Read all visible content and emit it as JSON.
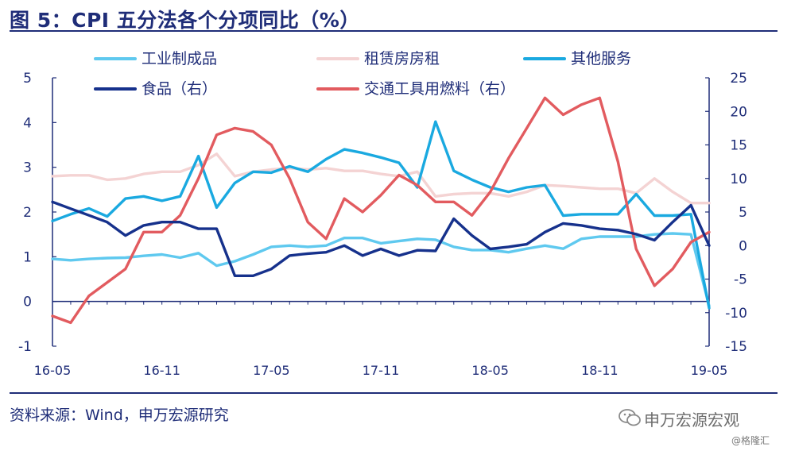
{
  "header": {
    "title": "图 5：CPI 五分法各个分项同比（%）"
  },
  "footer": {
    "source": "资料来源：Wind，申万宏源研究",
    "brand": "申万宏源宏观",
    "watermark": "@格隆汇"
  },
  "colors": {
    "title": "#1f2d78",
    "industrial": "#5fc9ef",
    "rent": "#f4d3d3",
    "other_services": "#1aa9e0",
    "food": "#16318c",
    "fuel": "#e25b5f"
  },
  "chart_data": {
    "type": "line",
    "x": [
      "16-05",
      "16-06",
      "16-07",
      "16-08",
      "16-09",
      "16-10",
      "16-11",
      "16-12",
      "17-01",
      "17-02",
      "17-03",
      "17-04",
      "17-05",
      "17-06",
      "17-07",
      "17-08",
      "17-09",
      "17-10",
      "17-11",
      "17-12",
      "18-01",
      "18-02",
      "18-03",
      "18-04",
      "18-05",
      "18-06",
      "18-07",
      "18-08",
      "18-09",
      "18-10",
      "18-11",
      "18-12",
      "19-01",
      "19-02",
      "19-03",
      "19-04",
      "19-05"
    ],
    "x_tick_labels": [
      "16-05",
      "16-11",
      "17-05",
      "17-11",
      "18-05",
      "18-11",
      "19-05"
    ],
    "x_tick_indices": [
      0,
      6,
      12,
      18,
      24,
      30,
      36
    ],
    "y_left": {
      "min": -1,
      "max": 5,
      "ticks": [
        -1,
        0,
        1,
        2,
        3,
        4,
        5
      ]
    },
    "y_right": {
      "min": -15,
      "max": 25,
      "ticks": [
        -15,
        -10,
        -5,
        0,
        5,
        10,
        15,
        20,
        25
      ]
    },
    "grid": false,
    "legend": "top",
    "series": [
      {
        "name": "工业制成品",
        "axis": "left",
        "color": "#5fc9ef",
        "values": [
          0.95,
          0.92,
          0.95,
          0.97,
          0.98,
          1.02,
          1.05,
          0.98,
          1.08,
          0.8,
          0.9,
          1.05,
          1.22,
          1.25,
          1.22,
          1.25,
          1.42,
          1.42,
          1.3,
          1.35,
          1.4,
          1.38,
          1.22,
          1.15,
          1.15,
          1.1,
          1.18,
          1.25,
          1.18,
          1.4,
          1.45,
          1.45,
          1.45,
          1.5,
          1.52,
          1.5,
          -0.1
        ]
      },
      {
        "name": "租赁房房租",
        "axis": "left",
        "color": "#f4d3d3",
        "values": [
          2.8,
          2.82,
          2.82,
          2.72,
          2.75,
          2.85,
          2.9,
          2.9,
          3.05,
          3.3,
          2.8,
          2.9,
          2.95,
          2.98,
          2.95,
          2.98,
          2.92,
          2.92,
          2.85,
          2.8,
          2.9,
          2.35,
          2.4,
          2.42,
          2.42,
          2.35,
          2.45,
          2.6,
          2.58,
          2.55,
          2.52,
          2.52,
          2.42,
          2.75,
          2.45,
          2.2,
          2.2
        ]
      },
      {
        "name": "其他服务",
        "axis": "left",
        "color": "#1aa9e0",
        "values": [
          1.8,
          1.95,
          2.08,
          1.9,
          2.3,
          2.35,
          2.25,
          2.35,
          3.25,
          2.1,
          2.65,
          2.9,
          2.88,
          3.02,
          2.9,
          3.18,
          3.4,
          3.32,
          3.22,
          3.1,
          2.55,
          4.02,
          2.92,
          2.72,
          2.55,
          2.45,
          2.55,
          2.6,
          1.92,
          1.95,
          1.95,
          1.95,
          2.4,
          1.92,
          1.92,
          1.95,
          -0.15
        ]
      },
      {
        "name": "食品（右）",
        "axis": "right",
        "color": "#16318c",
        "values": [
          6.5,
          5.5,
          4.5,
          3.5,
          1.5,
          3.0,
          3.5,
          3.5,
          2.5,
          2.5,
          -4.5,
          -4.5,
          -3.5,
          -1.5,
          -1.2,
          -1.0,
          0.0,
          -1.5,
          -0.5,
          -1.5,
          -0.7,
          -0.8,
          4.0,
          1.5,
          -0.5,
          -0.2,
          0.2,
          2.0,
          3.3,
          3.0,
          2.5,
          2.3,
          1.7,
          0.8,
          3.5,
          6.0,
          0.0
        ]
      },
      {
        "name": "交通工具用燃料（右）",
        "axis": "right",
        "color": "#e25b5f",
        "values": [
          -10.5,
          -11.5,
          -7.5,
          -5.5,
          -3.5,
          2.0,
          2.0,
          4.5,
          10.0,
          16.5,
          17.5,
          17.0,
          15.0,
          10.0,
          3.5,
          1.0,
          7.0,
          5.0,
          7.5,
          10.5,
          9.0,
          6.5,
          6.5,
          4.5,
          8.0,
          13.0,
          17.5,
          22.0,
          19.5,
          21.0,
          22.0,
          12.5,
          -0.5,
          -6.0,
          -3.5,
          0.5,
          2.0
        ]
      }
    ]
  }
}
